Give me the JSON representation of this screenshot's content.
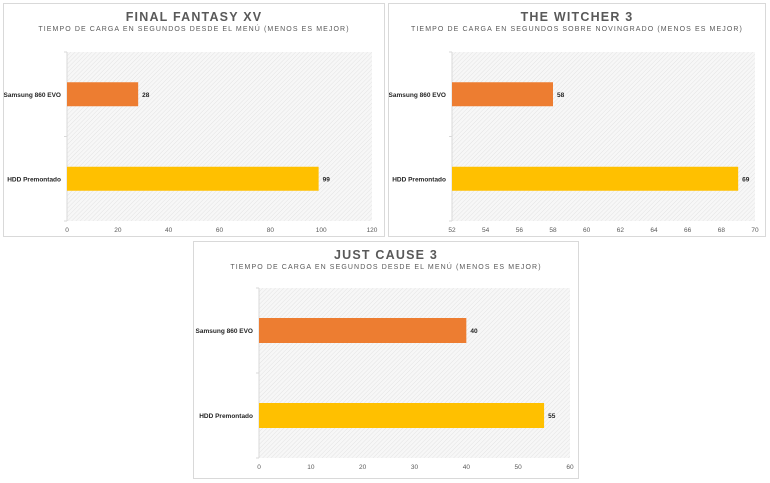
{
  "chart_data": [
    {
      "type": "bar",
      "orientation": "horizontal",
      "title": "FINAL FANTASY XV",
      "subtitle": "TIEMPO DE CARGA EN SEGUNDOS DESDE EL MENÚ (MENOS ES MEJOR)",
      "categories": [
        "Samsung 860 EVO",
        "HDD Premontado"
      ],
      "values": [
        28,
        99
      ],
      "colors": [
        "#ed7d31",
        "#ffc000"
      ],
      "xlim": [
        0,
        120
      ],
      "ticks": [
        0,
        20,
        40,
        60,
        80,
        100,
        120
      ],
      "tick_labels": [
        "0",
        "20",
        "40",
        "60",
        "80",
        "100",
        "120"
      ],
      "data_labels": [
        "28",
        "99"
      ]
    },
    {
      "type": "bar",
      "orientation": "horizontal",
      "title": "THE WITCHER 3",
      "subtitle": "TIEMPO DE CARGA EN SEGUNDOS SOBRE NOVINGRADO (MENOS ES MEJOR)",
      "categories": [
        "Samsung 860 EVO",
        "HDD Premontado"
      ],
      "values": [
        58,
        69
      ],
      "colors": [
        "#ed7d31",
        "#ffc000"
      ],
      "xlim": [
        52,
        70
      ],
      "ticks": [
        52,
        54,
        56,
        58,
        60,
        62,
        64,
        66,
        68,
        70
      ],
      "tick_labels": [
        "52",
        "54",
        "56",
        "58",
        "60",
        "62",
        "64",
        "66",
        "68",
        "70"
      ],
      "data_labels": [
        "58",
        "69"
      ]
    },
    {
      "type": "bar",
      "orientation": "horizontal",
      "title": "JUST CAUSE 3",
      "subtitle": "TIEMPO DE CARGA EN SEGUNDOS DESDE EL MENÚ (MENOS ES MEJOR)",
      "categories": [
        "Samsung 860 EVO",
        "HDD Premontado"
      ],
      "values": [
        40,
        55
      ],
      "colors": [
        "#ed7d31",
        "#ffc000"
      ],
      "xlim": [
        0,
        60
      ],
      "ticks": [
        0,
        10,
        20,
        30,
        40,
        50,
        60
      ],
      "tick_labels": [
        "0",
        "10",
        "20",
        "30",
        "40",
        "50",
        "60"
      ],
      "data_labels": [
        "40",
        "55"
      ]
    }
  ]
}
